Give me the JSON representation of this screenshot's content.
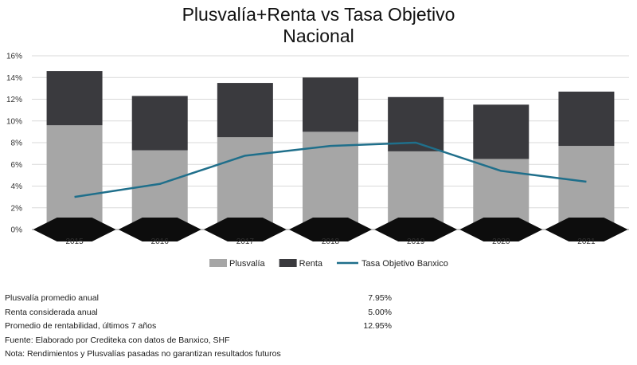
{
  "chart_data": {
    "type": "bar",
    "stacked": true,
    "title": "Plusvalía+Renta vs Tasa Objetivo",
    "subtitle": "Nacional",
    "categories": [
      "2015",
      "2016",
      "2017",
      "2018",
      "2019",
      "2020",
      "2021"
    ],
    "series": [
      {
        "name": "Plusvalía",
        "type": "bar",
        "color": "#a6a6a6",
        "values": [
          9.6,
          7.3,
          8.5,
          9.0,
          7.2,
          6.5,
          7.7
        ]
      },
      {
        "name": "Renta",
        "type": "bar",
        "color": "#3a3a3e",
        "values": [
          5.0,
          5.0,
          5.0,
          5.0,
          5.0,
          5.0,
          5.0
        ]
      },
      {
        "name": "Tasa Objetivo Banxico",
        "type": "line",
        "color": "#1f6f8b",
        "values": [
          3.0,
          4.2,
          6.8,
          7.7,
          8.0,
          5.4,
          4.4
        ]
      }
    ],
    "ylim": [
      0,
      16
    ],
    "yticks": [
      "0%",
      "2%",
      "4%",
      "6%",
      "8%",
      "10%",
      "12%",
      "14%",
      "16%"
    ],
    "grid": true,
    "legend": "bottom"
  },
  "notes": [
    {
      "label": "Plusvalía promedio anual",
      "value": "7.95%"
    },
    {
      "label": "Renta considerada anual",
      "value": "5.00%"
    },
    {
      "label": "Promedio de rentabilidad, últimos 7 años",
      "value": "12.95%"
    },
    {
      "label": "Fuente: Elaborado por Crediteka con datos de Banxico, SHF",
      "value": ""
    },
    {
      "label": "Nota: Rendimientos y Plusvalías pasadas no garantizan resultados futuros",
      "value": ""
    }
  ]
}
